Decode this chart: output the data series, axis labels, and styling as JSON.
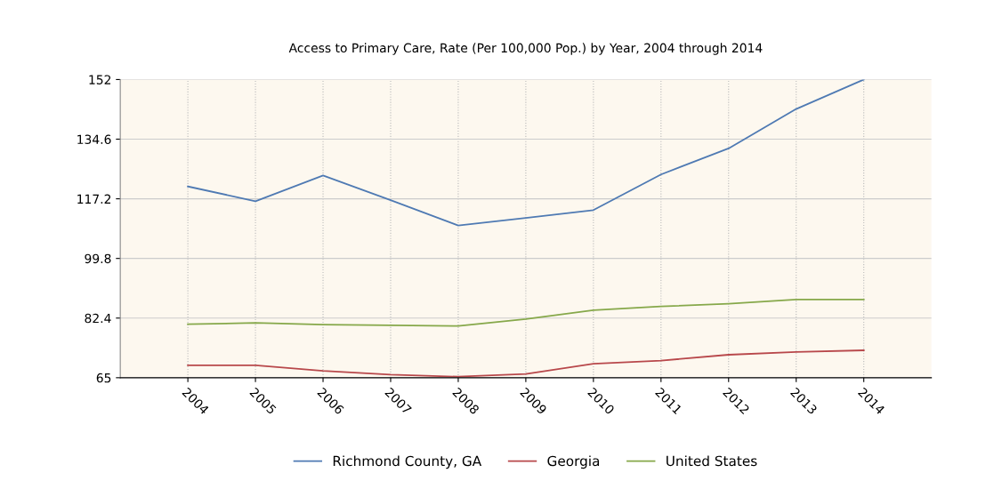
{
  "chart_data": {
    "type": "line",
    "title": "Access to Primary Care, Rate (Per 100,000 Pop.) by Year, 2004 through 2014",
    "x": [
      2004,
      2005,
      2006,
      2007,
      2008,
      2009,
      2010,
      2011,
      2012,
      2013,
      2014
    ],
    "series": [
      {
        "name": "Richmond County, GA",
        "color": "#4f7ab3",
        "values": [
          120.8,
          116.5,
          124.0,
          116.8,
          109.4,
          111.6,
          113.9,
          124.3,
          131.9,
          143.4,
          152
        ]
      },
      {
        "name": "Georgia",
        "color": "#b8484b",
        "values": [
          68.6,
          68.6,
          67.0,
          65.9,
          65.3,
          66.1,
          69.1,
          70.0,
          71.7,
          72.5,
          73.0
        ]
      },
      {
        "name": "United States",
        "color": "#86a84a",
        "values": [
          80.6,
          81.0,
          80.5,
          80.3,
          80.1,
          82.1,
          84.7,
          85.8,
          86.6,
          87.8,
          87.8
        ]
      }
    ],
    "xlim": [
      2003,
      2015
    ],
    "xticks": [
      2004,
      2005,
      2006,
      2007,
      2008,
      2009,
      2010,
      2011,
      2012,
      2013,
      2014
    ],
    "ylim": [
      65,
      152
    ],
    "yticks": [
      65,
      82.4,
      99.8,
      117.2,
      134.6,
      152
    ],
    "grid": true,
    "legend": "bottom",
    "marker": "none",
    "line_style": "solid"
  }
}
